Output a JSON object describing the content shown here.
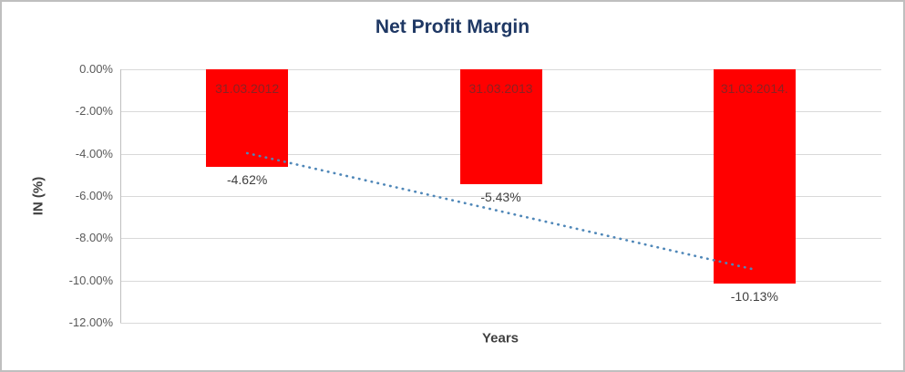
{
  "chart_data": {
    "type": "bar",
    "title": "Net Profit Margin",
    "xlabel": "Years",
    "ylabel": "IN (%)",
    "categories": [
      "31.03.2012",
      "31.03.2013",
      "31.03.2014."
    ],
    "values": [
      -4.62,
      -5.43,
      -10.13
    ],
    "value_labels": [
      "-4.62%",
      "-5.43%",
      "-10.13%"
    ],
    "ylim": [
      -12,
      0
    ],
    "ytick_step": 2,
    "ytick_labels": [
      "0.00%",
      "-2.00%",
      "-4.00%",
      "-6.00%",
      "-8.00%",
      "-10.00%",
      "-12.00%"
    ],
    "grid": true,
    "legend": "none",
    "trendline": {
      "style": "dotted",
      "start": -3.97,
      "end": -9.48,
      "color": "#4f87b8"
    },
    "colors": {
      "bar": "#ff0000",
      "title": "#1f3864",
      "axis_title": "#404040",
      "tick_label": "#595959",
      "gridline": "#d9d9d9",
      "axis_line": "#bfbfbf",
      "category_label": "#8b2222",
      "value_label": "#404040",
      "border": "#bfbfbf"
    }
  }
}
